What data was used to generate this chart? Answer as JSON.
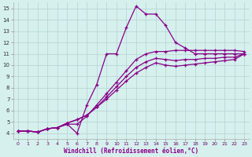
{
  "xlabel": "Windchill (Refroidissement éolien,°C)",
  "bg_color": "#d6f0ee",
  "line_color": "#880088",
  "grid_color": "#b8d8d4",
  "xlim": [
    -0.5,
    23.5
  ],
  "ylim": [
    3.5,
    15.5
  ],
  "xticks": [
    0,
    1,
    2,
    3,
    4,
    5,
    6,
    7,
    8,
    9,
    10,
    11,
    12,
    13,
    14,
    15,
    16,
    17,
    18,
    19,
    20,
    21,
    22,
    23
  ],
  "yticks": [
    4,
    5,
    6,
    7,
    8,
    9,
    10,
    11,
    12,
    13,
    14,
    15
  ],
  "lines": [
    [
      4.2,
      4.2,
      4.1,
      4.4,
      4.5,
      4.8,
      4.0,
      6.5,
      8.3,
      11.0,
      11.0,
      13.3,
      15.2,
      14.5,
      14.5,
      13.5,
      12.0,
      11.5,
      11.0,
      11.0,
      11.0,
      11.0,
      11.0,
      11.0
    ],
    [
      4.2,
      4.2,
      4.1,
      4.4,
      4.5,
      4.8,
      4.8,
      5.5,
      6.5,
      7.5,
      8.5,
      9.5,
      10.5,
      11.0,
      11.2,
      11.2,
      11.3,
      11.3,
      11.3,
      11.3,
      11.3,
      11.3,
      11.3,
      11.2
    ],
    [
      4.2,
      4.2,
      4.1,
      4.4,
      4.5,
      4.9,
      5.2,
      5.6,
      6.3,
      7.2,
      8.1,
      9.0,
      9.8,
      10.3,
      10.6,
      10.5,
      10.4,
      10.5,
      10.5,
      10.6,
      10.6,
      10.7,
      10.7,
      11.0
    ],
    [
      4.2,
      4.2,
      4.1,
      4.4,
      4.5,
      4.9,
      5.2,
      5.6,
      6.3,
      7.0,
      7.8,
      8.6,
      9.3,
      9.8,
      10.2,
      10.0,
      9.9,
      10.0,
      10.1,
      10.2,
      10.3,
      10.4,
      10.5,
      11.0
    ]
  ]
}
